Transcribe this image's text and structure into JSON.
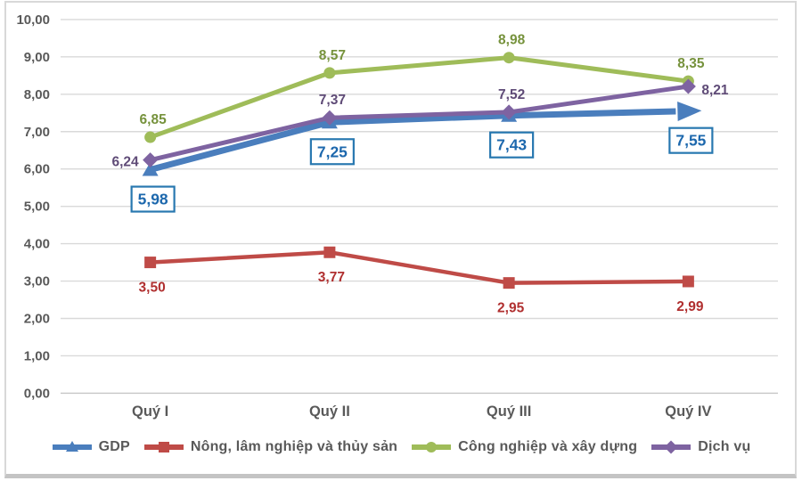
{
  "chart_data": {
    "type": "line",
    "title": "",
    "categories": [
      "Quý I",
      "Quý II",
      "Quý III",
      "Quý IV"
    ],
    "series": [
      {
        "name": "GDP",
        "values": [
          5.98,
          7.25,
          7.43,
          7.55
        ],
        "labels": [
          "5,98",
          "7,25",
          "7,43",
          "7,55"
        ],
        "color": "#4A7EBD",
        "marker": "triangle",
        "line_width": 7,
        "line_end": "arrow",
        "label_placement": "boxed-below",
        "label_color": "#1D68AD",
        "label_box_border": "#2878B0",
        "label_box_fill": "#ffffff"
      },
      {
        "name": "Nông, lâm nghiệp và thủy sản",
        "values": [
          3.5,
          3.77,
          2.95,
          2.99
        ],
        "labels": [
          "3,50",
          "3,77",
          "2,95",
          "2,99"
        ],
        "color": "#BF4B47",
        "marker": "square",
        "line_width": 4.5,
        "label_placement": "below",
        "label_color": "#B02F2F"
      },
      {
        "name": "Công nghiệp và xây dựng",
        "values": [
          6.85,
          8.57,
          8.98,
          8.35
        ],
        "labels": [
          "6,85",
          "8,57",
          "8,98",
          "8,35"
        ],
        "color": "#9FBC59",
        "marker": "circle",
        "line_width": 5,
        "label_placement": "above",
        "label_color": "#76923C"
      },
      {
        "name": "Dịch vụ",
        "values": [
          6.24,
          7.37,
          7.52,
          8.21
        ],
        "labels": [
          "6,24",
          "7,37",
          "7,52",
          "8,21"
        ],
        "color": "#7E63A1",
        "marker": "diamond",
        "line_width": 5,
        "label_placement": [
          "left",
          "above",
          "above",
          "right"
        ],
        "label_color": "#5F4B77"
      }
    ],
    "y_axis": {
      "min": 0,
      "max": 10,
      "step": 1,
      "tick_labels": [
        "0,00",
        "1,00",
        "2,00",
        "3,00",
        "4,00",
        "5,00",
        "6,00",
        "7,00",
        "8,00",
        "9,00",
        "10,00"
      ]
    },
    "x_axis": {
      "tick_labels": [
        "Quý I",
        "Quý II",
        "Quý III",
        "Quý IV"
      ]
    },
    "grid": true,
    "legend_position": "bottom",
    "colors": {
      "grid_line": "#d9d9d9",
      "zero_line": "#c6c6c6",
      "axis_text": "#595959"
    }
  }
}
